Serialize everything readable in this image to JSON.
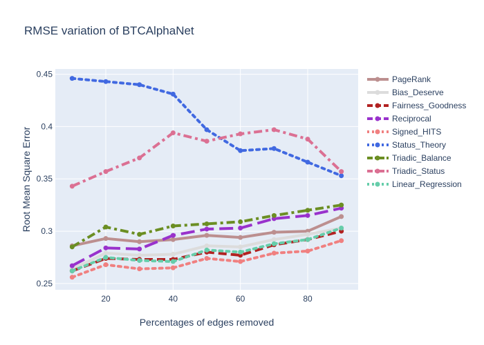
{
  "chart_data": {
    "type": "line",
    "title": "RMSE variation of BTCAlphaNet",
    "xlabel": "Percentages of edges removed",
    "ylabel": "Root Mean Square Error",
    "x": [
      10,
      20,
      30,
      40,
      50,
      60,
      70,
      80,
      90
    ],
    "xlim": [
      5,
      95
    ],
    "ylim": [
      0.244,
      0.455
    ],
    "x_ticks": [
      20,
      40,
      60,
      80
    ],
    "y_ticks": [
      0.25,
      0.3,
      0.35,
      0.4,
      0.45
    ],
    "y_tick_labels": [
      "0.25",
      "0.3",
      "0.35",
      "0.4",
      "0.45"
    ],
    "grid": true,
    "legend_position": "right",
    "plot_bgcolor": "#e5ecf6",
    "series": [
      {
        "name": "PageRank",
        "color": "#bc8f8f",
        "dash": "solid",
        "width": 4,
        "values": [
          0.286,
          0.293,
          0.29,
          0.292,
          0.296,
          0.294,
          0.299,
          0.3,
          0.314
        ]
      },
      {
        "name": "Bias_Deserve",
        "color": "#dcdcdc",
        "dash": "solid",
        "width": 4,
        "values": [
          0.264,
          0.279,
          0.277,
          0.278,
          0.286,
          0.285,
          0.292,
          0.297,
          0.303
        ]
      },
      {
        "name": "Fairness_Goodness",
        "color": "#b22222",
        "dash": "dash",
        "width": 4,
        "values": [
          0.262,
          0.274,
          0.273,
          0.273,
          0.28,
          0.277,
          0.287,
          0.292,
          0.3
        ]
      },
      {
        "name": "Reciprocal",
        "color": "#9932cc",
        "dash": "longdash",
        "width": 4,
        "values": [
          0.267,
          0.284,
          0.283,
          0.296,
          0.302,
          0.303,
          0.312,
          0.315,
          0.322
        ]
      },
      {
        "name": "Signed_HITS",
        "color": "#f08080",
        "dash": "dot",
        "width": 4,
        "values": [
          0.256,
          0.268,
          0.264,
          0.265,
          0.274,
          0.271,
          0.279,
          0.281,
          0.291
        ]
      },
      {
        "name": "Status_Theory",
        "color": "#4169e1",
        "dash": "dot",
        "width": 4,
        "values": [
          0.446,
          0.443,
          0.44,
          0.431,
          0.397,
          0.377,
          0.379,
          0.366,
          0.353
        ]
      },
      {
        "name": "Triadic_Balance",
        "color": "#6b8e23",
        "dash": "dashdot",
        "width": 4,
        "values": [
          0.285,
          0.304,
          0.297,
          0.305,
          0.307,
          0.309,
          0.315,
          0.32,
          0.325
        ]
      },
      {
        "name": "Triadic_Status",
        "color": "#db7093",
        "dash": "dashdot",
        "width": 4,
        "values": [
          0.343,
          0.357,
          0.37,
          0.394,
          0.386,
          0.393,
          0.397,
          0.388,
          0.357
        ]
      },
      {
        "name": "Linear_Regression",
        "color": "#66cdaa",
        "dash": "dot",
        "width": 4,
        "values": [
          0.262,
          0.275,
          0.272,
          0.271,
          0.282,
          0.28,
          0.288,
          0.292,
          0.303
        ]
      }
    ]
  }
}
